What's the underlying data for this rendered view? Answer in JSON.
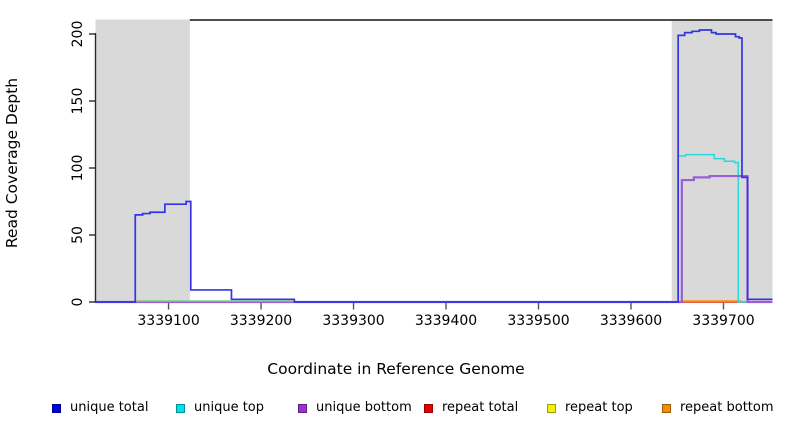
{
  "y_axis": {
    "label": "Read Coverage Depth",
    "ticks": [
      0,
      50,
      100,
      150,
      200
    ]
  },
  "x_axis": {
    "label": "Coordinate in Reference Genome",
    "ticks": [
      3339100,
      3339200,
      3339300,
      3339400,
      3339500,
      3339600,
      3339700
    ]
  },
  "legend": {
    "items": [
      {
        "label": "unique total",
        "color": "#0000e6"
      },
      {
        "label": "unique top",
        "color": "#00e0e8"
      },
      {
        "label": "unique bottom",
        "color": "#9a32cd"
      },
      {
        "label": "repeat total",
        "color": "#e60000"
      },
      {
        "label": "repeat top",
        "color": "#f2f200"
      },
      {
        "label": "repeat bottom",
        "color": "#f09000"
      }
    ]
  },
  "chart_data": {
    "type": "line",
    "style": "step-coverage",
    "title": "",
    "xlabel": "Coordinate in Reference Genome",
    "ylabel": "Read Coverage Depth",
    "xlim": [
      3339021,
      3339753
    ],
    "ylim": [
      0,
      210
    ],
    "grid": false,
    "legend_position": "bottom",
    "shade_color": "#d9d9d9",
    "shaded_regions": [
      {
        "start": 3339021,
        "end": 3339123
      },
      {
        "start": 3339644,
        "end": 3339753
      }
    ],
    "top_marker_line": {
      "start": 3339123,
      "end": 3339753,
      "color": "#4d4d4d"
    },
    "series": [
      {
        "name": "repeat total",
        "line_color": "#dd2222",
        "width": 1.4,
        "points": [
          [
            3339021,
            0
          ],
          [
            3339753,
            0
          ]
        ]
      },
      {
        "name": "repeat bottom",
        "line_color": "#ff8c00",
        "width": 1.8,
        "points": [
          [
            3339655,
            0.6
          ],
          [
            3339719,
            0.6
          ]
        ]
      },
      {
        "name": "unique top",
        "line_color": "#2ad8dc",
        "width": 1.5,
        "points": [
          [
            3339021,
            0
          ],
          [
            3339651,
            109
          ],
          [
            3339659,
            110
          ],
          [
            3339690,
            107
          ],
          [
            3339701,
            105
          ],
          [
            3339712,
            104
          ],
          [
            3339716,
            0
          ],
          [
            3339753,
            0
          ]
        ]
      },
      {
        "name": "unique bottom",
        "line_color": "#9a5fd6",
        "width": 2.2,
        "points": [
          [
            3339021,
            0
          ],
          [
            3339655,
            91
          ],
          [
            3339668,
            93
          ],
          [
            3339685,
            94
          ],
          [
            3339726,
            0
          ],
          [
            3339753,
            0
          ]
        ]
      },
      {
        "name": "repeat top",
        "line_color": "#7fd484",
        "width": 1.4,
        "points": [
          [
            3339064,
            0.8
          ],
          [
            3339236,
            0.8
          ]
        ]
      },
      {
        "name": "unique total",
        "line_color": "#3434e4",
        "width": 1.7,
        "points": [
          [
            3339021,
            0
          ],
          [
            3339064,
            65
          ],
          [
            3339072,
            66
          ],
          [
            3339080,
            67
          ],
          [
            3339096,
            73
          ],
          [
            3339119,
            75
          ],
          [
            3339124,
            9
          ],
          [
            3339168,
            2
          ],
          [
            3339236,
            0
          ],
          [
            3339651,
            199
          ],
          [
            3339658,
            201
          ],
          [
            3339666,
            202
          ],
          [
            3339674,
            203
          ],
          [
            3339687,
            201
          ],
          [
            3339692,
            200
          ],
          [
            3339713,
            198
          ],
          [
            3339717,
            197
          ],
          [
            3339720,
            93
          ],
          [
            3339726,
            2
          ],
          [
            3339753,
            2
          ]
        ]
      }
    ]
  }
}
